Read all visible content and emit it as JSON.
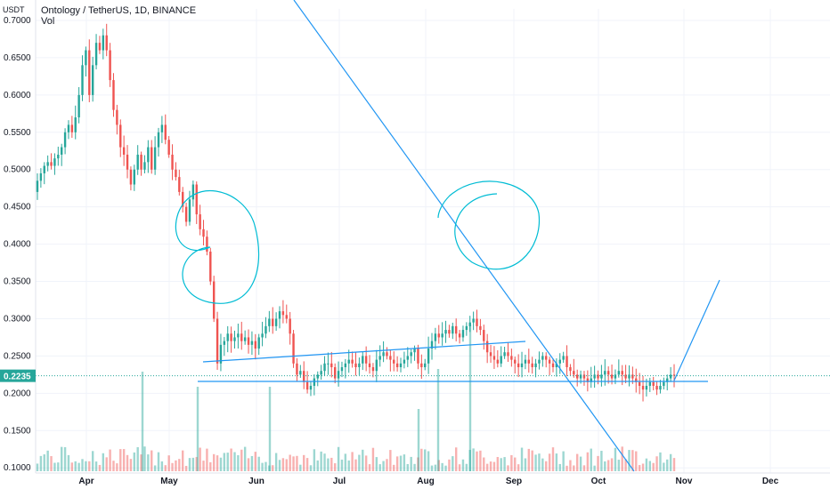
{
  "header": {
    "title": "Ontology / TetherUS, 1D, BINANCE",
    "volume_label": "Vol",
    "axis_unit": "USDT"
  },
  "current_price": {
    "label": "0.2235",
    "value": 0.2235
  },
  "colors": {
    "up": "#26a69a",
    "down": "#ef5350",
    "drawing": "#2196f3",
    "grid": "#f0f3fa"
  },
  "chart_data": {
    "type": "candlestick",
    "title": "Ontology / TetherUS, 1D, BINANCE",
    "ylabel": "USDT",
    "ylim": [
      0.0955,
      0.7155
    ],
    "y_ticks": [
      "0.7000",
      "0.6500",
      "0.6000",
      "0.5500",
      "0.5000",
      "0.4500",
      "0.4000",
      "0.3500",
      "0.3000",
      "0.2500",
      "0.2000",
      "0.1500",
      "0.1000"
    ],
    "x_ticks": [
      "Apr",
      "May",
      "Jun",
      "Jul",
      "Aug",
      "Sep",
      "Oct",
      "Nov",
      "Dec"
    ],
    "close_series": [
      0.485,
      0.495,
      0.505,
      0.51,
      0.505,
      0.515,
      0.52,
      0.53,
      0.55,
      0.56,
      0.55,
      0.57,
      0.6,
      0.64,
      0.66,
      0.6,
      0.64,
      0.67,
      0.66,
      0.68,
      0.66,
      0.62,
      0.58,
      0.56,
      0.53,
      0.52,
      0.5,
      0.48,
      0.5,
      0.52,
      0.5,
      0.51,
      0.53,
      0.5,
      0.53,
      0.55,
      0.56,
      0.54,
      0.52,
      0.5,
      0.49,
      0.47,
      0.45,
      0.43,
      0.46,
      0.48,
      0.44,
      0.42,
      0.41,
      0.39,
      0.35,
      0.3,
      0.24,
      0.265,
      0.27,
      0.28,
      0.27,
      0.275,
      0.28,
      0.27,
      0.275,
      0.265,
      0.27,
      0.26,
      0.275,
      0.28,
      0.29,
      0.3,
      0.29,
      0.3,
      0.31,
      0.305,
      0.3,
      0.28,
      0.24,
      0.225,
      0.23,
      0.215,
      0.205,
      0.21,
      0.22,
      0.225,
      0.23,
      0.24,
      0.24,
      0.235,
      0.22,
      0.23,
      0.235,
      0.24,
      0.245,
      0.24,
      0.235,
      0.24,
      0.25,
      0.24,
      0.235,
      0.23,
      0.245,
      0.25,
      0.255,
      0.25,
      0.245,
      0.24,
      0.235,
      0.24,
      0.245,
      0.25,
      0.255,
      0.26,
      0.24,
      0.235,
      0.24,
      0.26,
      0.27,
      0.28,
      0.275,
      0.28,
      0.285,
      0.28,
      0.29,
      0.28,
      0.275,
      0.285,
      0.29,
      0.295,
      0.3,
      0.29,
      0.285,
      0.27,
      0.255,
      0.25,
      0.245,
      0.24,
      0.25,
      0.255,
      0.25,
      0.245,
      0.24,
      0.235,
      0.24,
      0.245,
      0.24,
      0.235,
      0.24,
      0.245,
      0.25,
      0.245,
      0.24,
      0.235,
      0.24,
      0.245,
      0.25,
      0.235,
      0.23,
      0.225,
      0.22,
      0.225,
      0.22,
      0.215,
      0.22,
      0.225,
      0.22,
      0.225,
      0.23,
      0.225,
      0.22,
      0.225,
      0.23,
      0.225,
      0.22,
      0.225,
      0.22,
      0.215,
      0.21,
      0.205,
      0.21,
      0.215,
      0.21,
      0.205,
      0.21,
      0.215,
      0.22,
      0.225,
      0.2235
    ],
    "horizontal_line": 0.217
  }
}
